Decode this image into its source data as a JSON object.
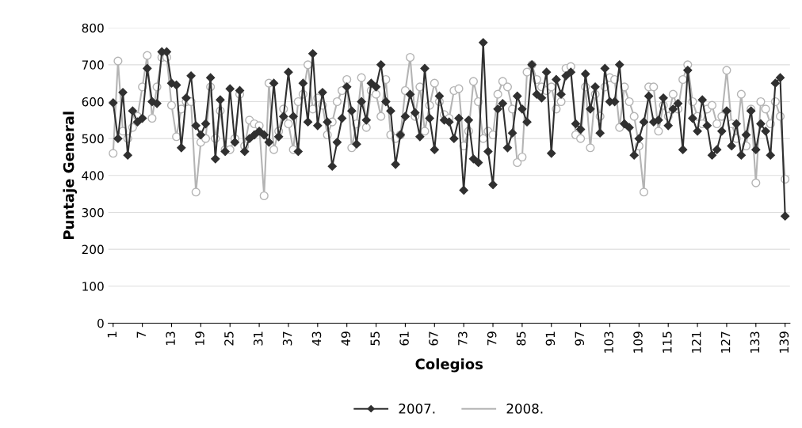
{
  "chart_data": {
    "type": "line",
    "xlabel": "Colegios",
    "ylabel": "Puntaje General",
    "x": [
      1,
      2,
      3,
      4,
      5,
      6,
      7,
      8,
      9,
      10,
      11,
      12,
      13,
      14,
      15,
      16,
      17,
      18,
      19,
      20,
      21,
      22,
      23,
      24,
      25,
      26,
      27,
      28,
      29,
      30,
      31,
      32,
      33,
      34,
      35,
      36,
      37,
      38,
      39,
      40,
      41,
      42,
      43,
      44,
      45,
      46,
      47,
      48,
      49,
      50,
      51,
      52,
      53,
      54,
      55,
      56,
      57,
      58,
      59,
      60,
      61,
      62,
      63,
      64,
      65,
      66,
      67,
      68,
      69,
      70,
      71,
      72,
      73,
      74,
      75,
      76,
      77,
      78,
      79,
      80,
      81,
      82,
      83,
      84,
      85,
      86,
      87,
      88,
      89,
      90,
      91,
      92,
      93,
      94,
      95,
      96,
      97,
      98,
      99,
      100,
      101,
      102,
      103,
      104,
      105,
      106,
      107,
      108,
      109,
      110,
      111,
      112,
      113,
      114,
      115,
      116,
      117,
      118,
      119,
      120,
      121,
      122,
      123,
      124,
      125,
      126,
      127,
      128,
      129,
      130,
      131,
      132,
      133,
      134,
      135,
      136,
      137,
      138,
      139
    ],
    "series": [
      {
        "name": "2007.",
        "color": "#303030",
        "marker": "diamond",
        "values": [
          597,
          500,
          625,
          455,
          575,
          545,
          555,
          690,
          600,
          595,
          735,
          735,
          650,
          645,
          475,
          610,
          670,
          535,
          510,
          540,
          665,
          445,
          605,
          465,
          635,
          490,
          630,
          465,
          500,
          510,
          520,
          510,
          490,
          650,
          505,
          560,
          680,
          560,
          465,
          650,
          545,
          730,
          535,
          625,
          545,
          425,
          490,
          555,
          640,
          575,
          485,
          600,
          550,
          650,
          640,
          700,
          600,
          575,
          430,
          510,
          560,
          620,
          570,
          505,
          690,
          555,
          470,
          615,
          550,
          545,
          500,
          555,
          360,
          550,
          445,
          435,
          760,
          465,
          375,
          580,
          595,
          475,
          515,
          615,
          580,
          545,
          700,
          620,
          610,
          680,
          460,
          660,
          620,
          670,
          680,
          540,
          525,
          675,
          580,
          640,
          515,
          690,
          600,
          600,
          700,
          540,
          530,
          455,
          500,
          545,
          615,
          545,
          550,
          610,
          535,
          580,
          595,
          470,
          685,
          555,
          520,
          605,
          535,
          455,
          470,
          520,
          575,
          480,
          540,
          455,
          510,
          575,
          470,
          540,
          520,
          455,
          650,
          665,
          290
        ]
      },
      {
        "name": "2008.",
        "color": "#b4b4b4",
        "marker": "circle",
        "values": [
          460,
          710,
          520,
          500,
          530,
          560,
          640,
          725,
          555,
          640,
          720,
          720,
          590,
          505,
          580,
          600,
          600,
          355,
          490,
          500,
          640,
          500,
          575,
          470,
          470,
          500,
          620,
          480,
          550,
          540,
          535,
          345,
          650,
          470,
          520,
          580,
          540,
          470,
          600,
          620,
          700,
          580,
          610,
          590,
          510,
          545,
          600,
          630,
          660,
          475,
          540,
          665,
          530,
          630,
          620,
          560,
          660,
          510,
          500,
          510,
          630,
          720,
          560,
          640,
          520,
          590,
          650,
          600,
          565,
          555,
          630,
          635,
          480,
          520,
          655,
          600,
          500,
          520,
          510,
          620,
          655,
          640,
          580,
          435,
          450,
          680,
          700,
          660,
          640,
          630,
          640,
          580,
          600,
          690,
          695,
          510,
          500,
          640,
          475,
          620,
          560,
          640,
          665,
          660,
          530,
          640,
          600,
          560,
          480,
          355,
          640,
          640,
          520,
          590,
          560,
          620,
          580,
          660,
          700,
          600,
          560,
          540,
          580,
          590,
          540,
          560,
          685,
          540,
          500,
          620,
          480,
          580,
          380,
          600,
          580,
          540,
          600,
          560,
          390
        ]
      }
    ],
    "xlim": [
      0,
      140
    ],
    "xticks": [
      1,
      7,
      13,
      19,
      25,
      31,
      37,
      43,
      49,
      55,
      61,
      67,
      73,
      79,
      85,
      91,
      97,
      103,
      109,
      115,
      121,
      127,
      133,
      139
    ],
    "ylim": [
      0,
      800
    ],
    "yticks": [
      0,
      100,
      200,
      300,
      400,
      500,
      600,
      700,
      800
    ],
    "grid": "y",
    "legend": "bottom"
  }
}
